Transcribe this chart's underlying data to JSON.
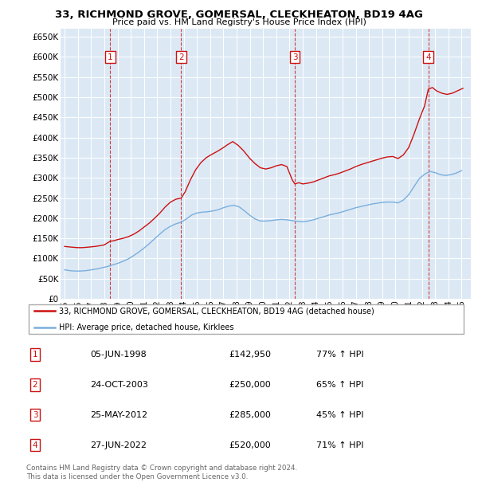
{
  "title": "33, RICHMOND GROVE, GOMERSAL, CLECKHEATON, BD19 4AG",
  "subtitle": "Price paid vs. HM Land Registry's House Price Index (HPI)",
  "plot_bg_color": "#dce9f5",
  "ylim": [
    0,
    670000
  ],
  "yticks": [
    0,
    50000,
    100000,
    150000,
    200000,
    250000,
    300000,
    350000,
    400000,
    450000,
    500000,
    550000,
    600000,
    650000
  ],
  "xlim_start": 1994.7,
  "xlim_end": 2025.7,
  "legend_label_red": "33, RICHMOND GROVE, GOMERSAL, CLECKHEATON, BD19 4AG (detached house)",
  "legend_label_blue": "HPI: Average price, detached house, Kirklees",
  "footer_line1": "Contains HM Land Registry data © Crown copyright and database right 2024.",
  "footer_line2": "This data is licensed under the Open Government Licence v3.0.",
  "transactions": [
    {
      "num": 1,
      "date": "05-JUN-1998",
      "price": "£142,950",
      "pct": "77%",
      "year": 1998.44
    },
    {
      "num": 2,
      "date": "24-OCT-2003",
      "price": "£250,000",
      "pct": "65%",
      "year": 2003.81
    },
    {
      "num": 3,
      "date": "25-MAY-2012",
      "price": "£285,000",
      "pct": "45%",
      "year": 2012.4
    },
    {
      "num": 4,
      "date": "27-JUN-2022",
      "price": "£520,000",
      "pct": "71%",
      "year": 2022.49
    }
  ],
  "red_line_x": [
    1995.0,
    1995.3,
    1995.6,
    1996.0,
    1996.3,
    1996.7,
    1997.0,
    1997.3,
    1997.7,
    1998.0,
    1998.44,
    1998.7,
    1999.0,
    1999.4,
    1999.8,
    2000.2,
    2000.6,
    2001.0,
    2001.4,
    2001.8,
    2002.2,
    2002.6,
    2003.0,
    2003.4,
    2003.81,
    2004.1,
    2004.5,
    2004.9,
    2005.3,
    2005.7,
    2006.1,
    2006.5,
    2006.9,
    2007.3,
    2007.7,
    2008.1,
    2008.5,
    2009.0,
    2009.4,
    2009.8,
    2010.2,
    2010.6,
    2011.0,
    2011.4,
    2011.8,
    2012.2,
    2012.4,
    2012.7,
    2013.0,
    2013.4,
    2013.8,
    2014.2,
    2014.6,
    2015.0,
    2015.4,
    2015.8,
    2016.2,
    2016.6,
    2017.0,
    2017.4,
    2017.8,
    2018.2,
    2018.6,
    2019.0,
    2019.4,
    2019.8,
    2020.2,
    2020.6,
    2021.0,
    2021.4,
    2021.8,
    2022.2,
    2022.49,
    2022.8,
    2023.1,
    2023.5,
    2023.9,
    2024.3,
    2024.7,
    2025.1
  ],
  "red_line_y": [
    130000,
    129000,
    128000,
    127000,
    127000,
    128000,
    129000,
    130000,
    132000,
    134000,
    142950,
    144000,
    147000,
    150000,
    154000,
    160000,
    168000,
    178000,
    188000,
    200000,
    213000,
    228000,
    240000,
    247000,
    250000,
    265000,
    295000,
    320000,
    338000,
    350000,
    358000,
    365000,
    373000,
    382000,
    390000,
    381000,
    368000,
    348000,
    335000,
    325000,
    322000,
    325000,
    330000,
    333000,
    328000,
    295000,
    285000,
    288000,
    285000,
    287000,
    290000,
    295000,
    300000,
    305000,
    308000,
    312000,
    317000,
    322000,
    328000,
    333000,
    337000,
    341000,
    345000,
    349000,
    352000,
    353000,
    348000,
    357000,
    375000,
    408000,
    445000,
    478000,
    520000,
    524000,
    516000,
    510000,
    507000,
    510000,
    516000,
    522000
  ],
  "blue_line_x": [
    1995.0,
    1995.4,
    1995.8,
    1996.2,
    1996.6,
    1997.0,
    1997.4,
    1997.8,
    1998.2,
    1998.6,
    1999.0,
    1999.4,
    1999.8,
    2000.2,
    2000.6,
    2001.0,
    2001.4,
    2001.8,
    2002.2,
    2002.6,
    2003.0,
    2003.4,
    2003.8,
    2004.2,
    2004.6,
    2005.0,
    2005.4,
    2005.8,
    2006.2,
    2006.6,
    2007.0,
    2007.4,
    2007.8,
    2008.2,
    2008.6,
    2009.0,
    2009.4,
    2009.8,
    2010.2,
    2010.6,
    2011.0,
    2011.4,
    2011.8,
    2012.2,
    2012.6,
    2013.0,
    2013.4,
    2013.8,
    2014.2,
    2014.6,
    2015.0,
    2015.4,
    2015.8,
    2016.2,
    2016.6,
    2017.0,
    2017.4,
    2017.8,
    2018.2,
    2018.6,
    2019.0,
    2019.4,
    2019.8,
    2020.2,
    2020.6,
    2021.0,
    2021.4,
    2021.8,
    2022.2,
    2022.6,
    2023.0,
    2023.4,
    2023.8,
    2024.2,
    2024.6,
    2025.0
  ],
  "blue_line_y": [
    72000,
    70000,
    69000,
    69000,
    70000,
    72000,
    74000,
    77000,
    80000,
    84000,
    88000,
    93000,
    99000,
    107000,
    116000,
    126000,
    137000,
    149000,
    161000,
    172000,
    180000,
    186000,
    190000,
    198000,
    208000,
    213000,
    215000,
    216000,
    218000,
    221000,
    226000,
    230000,
    232000,
    228000,
    218000,
    207000,
    198000,
    193000,
    193000,
    194000,
    196000,
    197000,
    196000,
    194000,
    192000,
    191000,
    193000,
    196000,
    200000,
    204000,
    208000,
    211000,
    214000,
    218000,
    222000,
    226000,
    229000,
    232000,
    235000,
    237000,
    239000,
    240000,
    240000,
    238000,
    245000,
    258000,
    278000,
    298000,
    309000,
    316000,
    313000,
    308000,
    306000,
    308000,
    312000,
    318000
  ]
}
